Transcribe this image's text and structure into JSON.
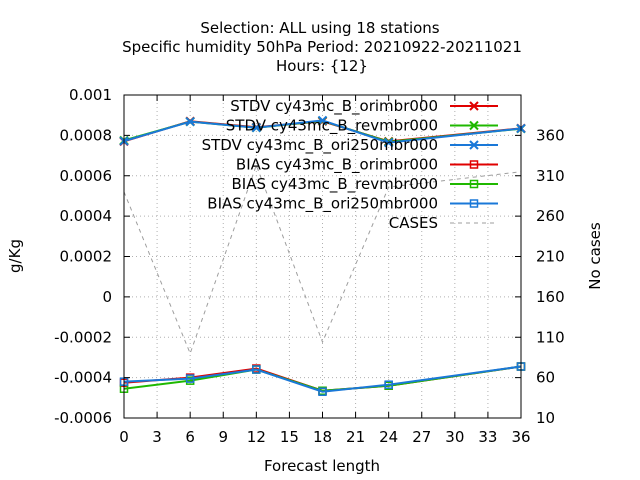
{
  "chart_data": {
    "type": "line",
    "title_lines": [
      "Selection: ALL using    18 stations",
      "Specific humidity 50hPa   Period: 20210922-20211021",
      "Hours: {12}"
    ],
    "xlabel": "Forecast length",
    "ylabel": "g/Kg",
    "y2label": "No cases",
    "xlim": [
      0,
      36
    ],
    "ylim": [
      -0.0006,
      0.001
    ],
    "y2lim": [
      10,
      410
    ],
    "x_ticks": [
      "0",
      "3",
      "6",
      "9",
      "12",
      "15",
      "18",
      "21",
      "24",
      "27",
      "30",
      "33",
      "36"
    ],
    "y_ticks": [
      "0.001",
      "0.0008",
      "0.0006",
      "0.0004",
      "0.0002",
      "0",
      "-0.0002",
      "-0.0004",
      "-0.0006"
    ],
    "y2_ticks": [
      "360",
      "310",
      "260",
      "210",
      "160",
      "110",
      "60",
      "10"
    ],
    "grid": true,
    "legend_position": "top-right",
    "x": [
      0,
      6,
      12,
      18,
      24,
      36
    ],
    "series": [
      {
        "name": "STDV cy43mc_B_orimbr000",
        "color": "#e00000",
        "marker": "x",
        "axis": "y",
        "values": [
          0.00077,
          0.00087,
          0.00084,
          0.00087,
          0.00077,
          0.000835
        ]
      },
      {
        "name": "STDV cy43mc_B_revmbr000",
        "color": "#1fb800",
        "marker": "x",
        "axis": "y",
        "values": [
          0.000775,
          0.000868,
          0.000838,
          0.000872,
          0.000768,
          0.000833
        ]
      },
      {
        "name": "STDV cy43mc_B_ori250mbr000",
        "color": "#1a78d8",
        "marker": "x",
        "axis": "y",
        "values": [
          0.000772,
          0.000868,
          0.000838,
          0.000874,
          0.000764,
          0.000834
        ]
      },
      {
        "name": "BIAS cy43mc_B_orimbr000",
        "color": "#e00000",
        "marker": "square",
        "axis": "y",
        "values": [
          -0.000425,
          -0.0004,
          -0.000355,
          -0.000465,
          -0.00044,
          -0.000345
        ]
      },
      {
        "name": "BIAS cy43mc_B_revmbr000",
        "color": "#1fb800",
        "marker": "square",
        "axis": "y",
        "values": [
          -0.000455,
          -0.000415,
          -0.00036,
          -0.000465,
          -0.00044,
          -0.000345
        ]
      },
      {
        "name": "BIAS cy43mc_B_ori250mbr000",
        "color": "#1a78d8",
        "marker": "square",
        "axis": "y",
        "values": [
          -0.00042,
          -0.000405,
          -0.00036,
          -0.00047,
          -0.000435,
          -0.000345
        ]
      },
      {
        "name": "CASES",
        "color": "#9e9e9e",
        "marker": "none",
        "dash": true,
        "axis": "y2",
        "values": [
          290,
          90,
          323,
          104,
          296,
          315
        ]
      }
    ]
  }
}
